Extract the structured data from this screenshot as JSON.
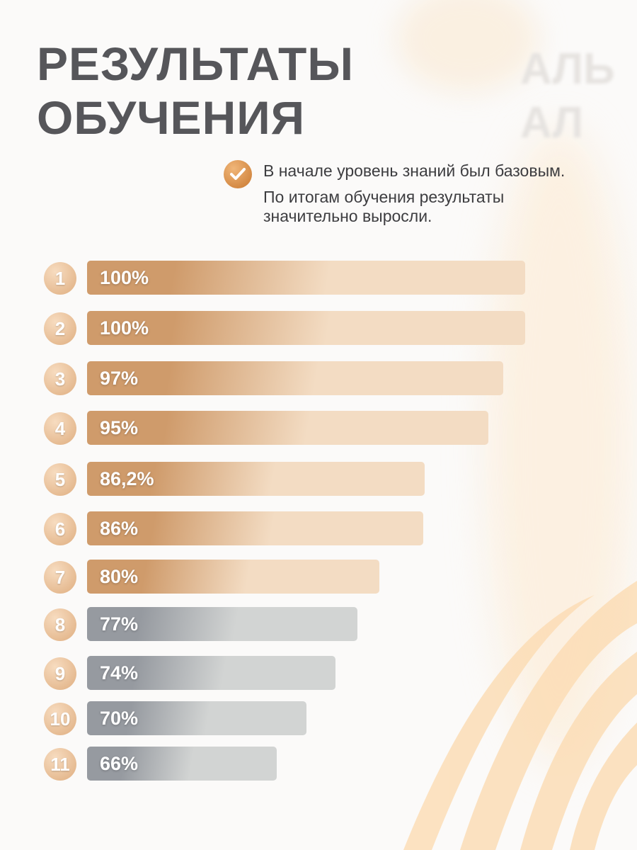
{
  "header": {
    "title_line1": "РЕЗУЛЬТАТЫ",
    "title_line2": "ОБУЧЕНИЯ",
    "watermark": "АЛЬ\nАЛ"
  },
  "note": {
    "line1": "В начале уровень знаний был базовым.",
    "line2": "По итогам обучения результаты значительно выросли."
  },
  "colors": {
    "gold_dark": "#cf9b6b",
    "gold_light": "#f3dcc3",
    "gray_dark": "#969aa0",
    "gray_light": "#d2d4d3"
  },
  "chart_data": {
    "type": "bar",
    "orientation": "horizontal",
    "categories": [
      "1",
      "2",
      "3",
      "4",
      "5",
      "6",
      "7",
      "8",
      "9",
      "10",
      "11"
    ],
    "values": [
      100,
      100,
      97,
      95,
      86.2,
      86,
      80,
      77,
      74,
      70,
      66
    ],
    "labels": [
      "100%",
      "100%",
      "97%",
      "95%",
      "86,2%",
      "86%",
      "80%",
      "77%",
      "74%",
      "70%",
      "66%"
    ],
    "highlight_threshold": 80,
    "title": "РЕЗУЛЬТАТЫ ОБУЧЕНИЯ",
    "xlabel": "",
    "ylabel": ""
  }
}
